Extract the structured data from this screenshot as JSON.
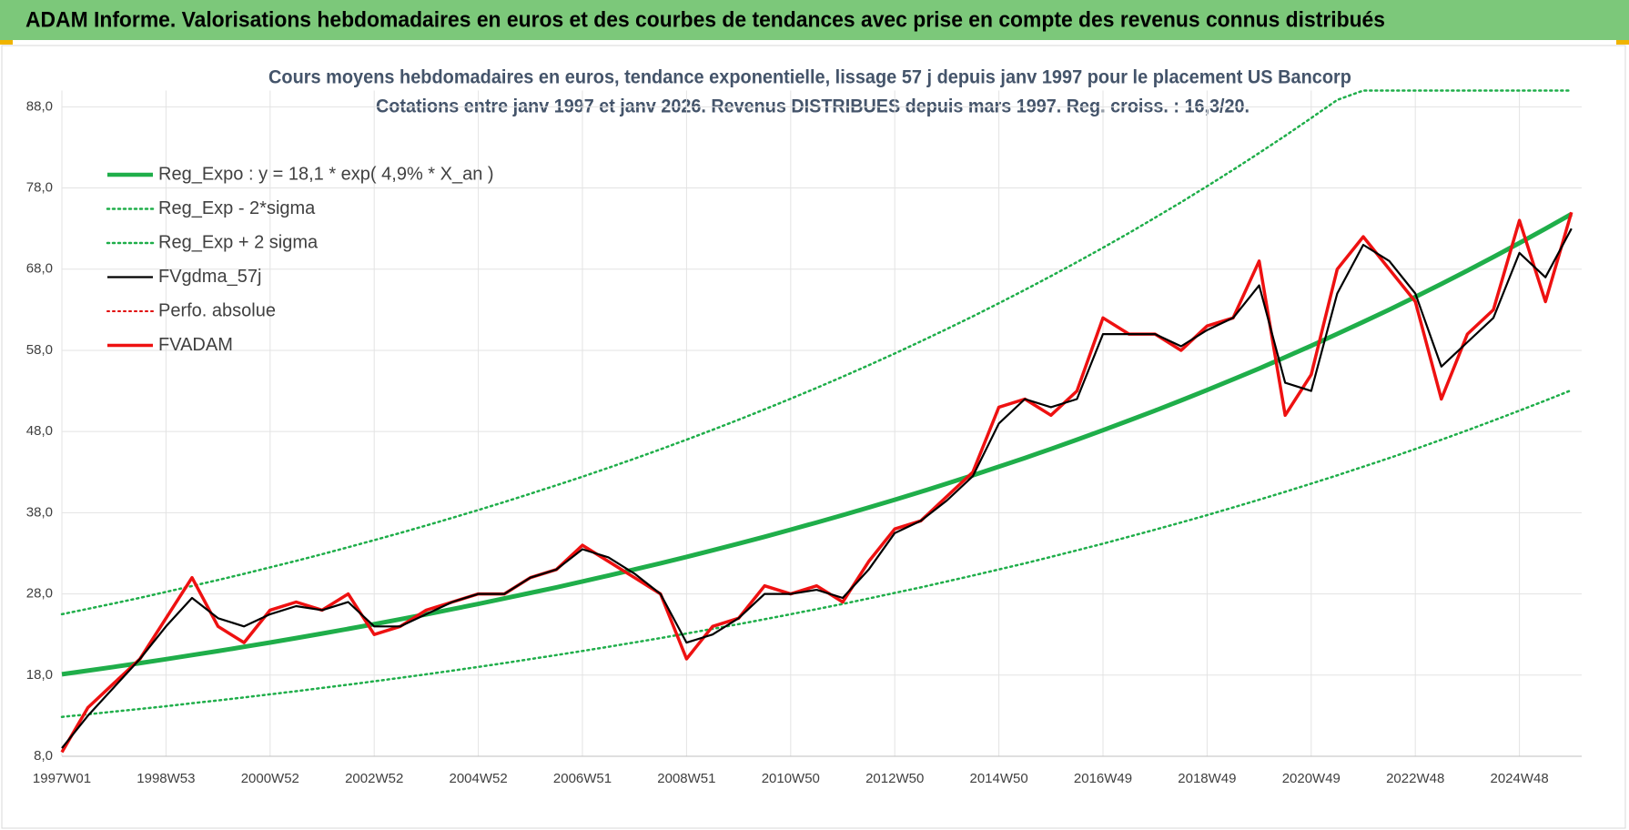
{
  "header": "ADAM Informe. Valorisations hebdomadaires en euros et des courbes de tendances avec prise en compte des revenus connus distribués",
  "chart_data": {
    "type": "line",
    "title": "Cours moyens hebdomadaires en euros, tendance exponentielle, lissage 57 j depuis janv 1997 pour le placement US Bancorp",
    "subtitle": "Cotations entre janv 1997 et janv 2026. Revenus DISTRIBUES depuis mars 1997. Reg. croiss. : 16,3/20.",
    "categories": [
      "1997W01",
      null,
      null,
      null,
      "1998W53",
      null,
      null,
      null,
      "2000W52",
      null,
      null,
      null,
      "2002W52",
      null,
      null,
      null,
      "2004W52",
      null,
      null,
      null,
      "2006W51",
      null,
      null,
      null,
      "2008W51",
      null,
      null,
      null,
      "2010W50",
      null,
      null,
      null,
      "2012W50",
      null,
      null,
      null,
      "2014W50",
      null,
      null,
      null,
      "2016W49",
      null,
      null,
      null,
      "2018W49",
      null,
      null,
      null,
      "2020W49",
      null,
      null,
      null,
      "2022W48",
      null,
      null,
      null,
      "2024W48",
      null,
      null
    ],
    "ylim": [
      8,
      90
    ],
    "yticks": [
      {
        "value": 8,
        "label": "8,0"
      },
      {
        "value": 18,
        "label": "18,0"
      },
      {
        "value": 28,
        "label": "28,0"
      },
      {
        "value": 38,
        "label": "38,0"
      },
      {
        "value": 48,
        "label": "48,0"
      },
      {
        "value": 58,
        "label": "58,0"
      },
      {
        "value": 68,
        "label": "68,0"
      },
      {
        "value": 78,
        "label": "78,0"
      },
      {
        "value": 88,
        "label": "88,0"
      }
    ],
    "grid": true,
    "legend": "upper left",
    "series": [
      {
        "name": "Reg_Expo : y = 18,1 * exp( 4,9% *  X_an )",
        "color": "#1fae4a",
        "style": "solid",
        "width": 5,
        "values": [
          18.1,
          18.55,
          19.01,
          19.48,
          19.96,
          20.46,
          20.96,
          21.48,
          22.01,
          22.56,
          23.12,
          23.69,
          24.28,
          24.88,
          25.49,
          26.13,
          26.77,
          27.44,
          28.12,
          28.81,
          29.53,
          30.26,
          31.01,
          31.78,
          32.56,
          33.37,
          34.2,
          35.04,
          35.91,
          36.8,
          37.71,
          38.65,
          39.6,
          40.58,
          41.59,
          42.62,
          43.67,
          44.75,
          45.86,
          47.0,
          48.16,
          49.36,
          50.58,
          51.83,
          53.11,
          54.43,
          55.77,
          57.15,
          58.57,
          60.02,
          61.5,
          63.02,
          64.58,
          66.18,
          67.82,
          69.5,
          71.22,
          72.98,
          74.79
        ]
      },
      {
        "name": "Reg_Exp - 2*sigma",
        "color": "#1fae4a",
        "style": "dotted",
        "width": 2.5,
        "values": [
          12.85,
          13.17,
          13.5,
          13.83,
          14.17,
          14.53,
          14.88,
          15.25,
          15.63,
          16.02,
          16.42,
          16.82,
          17.24,
          17.66,
          18.1,
          18.55,
          19.01,
          19.48,
          19.97,
          20.46,
          20.97,
          21.48,
          22.02,
          22.56,
          23.12,
          23.69,
          24.28,
          24.88,
          25.5,
          26.13,
          26.77,
          27.44,
          28.12,
          28.81,
          29.53,
          30.26,
          31.01,
          31.77,
          32.56,
          33.37,
          34.19,
          35.05,
          35.91,
          36.8,
          37.71,
          38.65,
          39.6,
          40.58,
          41.58,
          42.61,
          43.67,
          44.74,
          45.85,
          46.99,
          48.15,
          49.35,
          50.57,
          51.82,
          53.1
        ]
      },
      {
        "name": "Reg_Exp + 2 sigma",
        "color": "#1fae4a",
        "style": "dotted",
        "width": 2.5,
        "values": [
          25.5,
          26.16,
          26.83,
          27.52,
          28.24,
          28.97,
          29.71,
          30.48,
          31.27,
          32.07,
          32.9,
          33.75,
          34.62,
          35.51,
          36.43,
          37.37,
          38.33,
          39.32,
          40.34,
          41.38,
          42.44,
          43.54,
          44.66,
          45.81,
          47.0,
          48.21,
          49.45,
          50.73,
          52.04,
          53.38,
          54.76,
          56.17,
          57.62,
          59.11,
          60.63,
          62.19,
          63.8,
          65.45,
          67.14,
          68.87,
          70.64,
          72.46,
          74.34,
          76.25,
          78.22,
          80.24,
          82.31,
          84.43,
          86.61,
          88.84,
          90,
          90,
          90,
          90,
          90,
          90,
          90,
          90,
          90
        ]
      },
      {
        "name": "FVgdma_57j",
        "color": "#000000",
        "style": "solid",
        "width": 2.2,
        "values": [
          9,
          13,
          16.5,
          20,
          24,
          27.5,
          25,
          24,
          25.5,
          26.5,
          26,
          27,
          24,
          24,
          25.5,
          27,
          28,
          28,
          30,
          31,
          33.5,
          32.5,
          30.5,
          28,
          22,
          23,
          25,
          28,
          28,
          28.5,
          27.5,
          31,
          35.5,
          37,
          39.5,
          42.5,
          49,
          52,
          51,
          52,
          60,
          60,
          60,
          58.5,
          60.5,
          62,
          66,
          54,
          53,
          65,
          71,
          69,
          65,
          56,
          59,
          62,
          70,
          67,
          73
        ]
      },
      {
        "name": "Perfo. absolue",
        "color": "#e00000",
        "style": "dotted",
        "width": 2,
        "values": [
          null,
          null,
          null,
          null,
          null,
          null,
          null,
          null,
          null,
          null,
          null,
          null,
          null,
          null,
          null,
          null,
          null,
          null,
          null,
          null,
          null,
          null,
          null,
          null,
          null,
          null,
          null,
          null,
          null,
          null,
          null,
          null,
          null,
          null,
          null,
          null,
          null,
          null,
          null,
          null,
          null,
          null,
          null,
          null,
          null,
          null,
          null,
          null,
          null,
          null,
          null,
          null,
          null,
          null,
          null,
          null,
          null,
          null,
          null
        ]
      },
      {
        "name": "FVADAM",
        "color": "#ee1111",
        "style": "solid",
        "width": 3.5,
        "values": [
          8.5,
          14,
          17,
          20,
          25,
          30,
          24,
          22,
          26,
          27,
          26,
          28,
          23,
          24,
          26,
          27,
          28,
          28,
          30,
          31,
          34,
          32,
          30,
          28,
          20,
          24,
          25,
          29,
          28,
          29,
          27,
          32,
          36,
          37,
          40,
          43,
          51,
          52,
          50,
          53,
          62,
          60,
          60,
          58,
          61,
          62,
          69,
          50,
          55,
          68,
          72,
          68,
          64,
          52,
          60,
          63,
          74,
          64,
          75
        ]
      }
    ]
  }
}
